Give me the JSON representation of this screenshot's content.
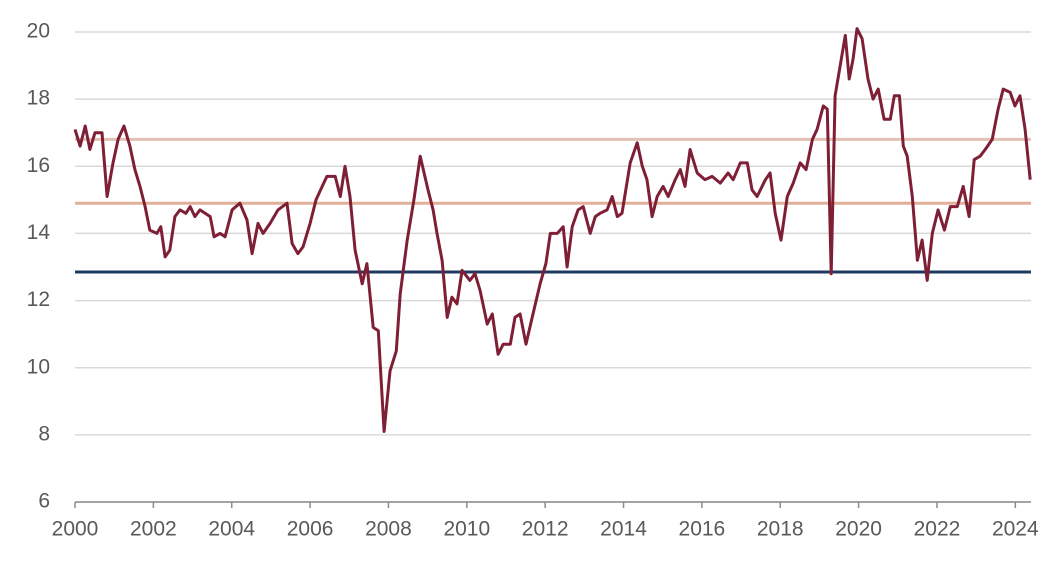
{
  "chart_data": {
    "type": "line",
    "x": [
      2000.0,
      2000.13,
      2000.26,
      2000.38,
      2000.51,
      2000.69,
      2000.82,
      2000.97,
      2001.1,
      2001.25,
      2001.4,
      2001.53,
      2001.66,
      2001.79,
      2001.91,
      2002.09,
      2002.19,
      2002.3,
      2002.42,
      2002.55,
      2002.68,
      2002.83,
      2002.94,
      2003.06,
      2003.19,
      2003.45,
      2003.55,
      2003.7,
      2003.83,
      2004.01,
      2004.21,
      2004.39,
      2004.52,
      2004.67,
      2004.8,
      2004.98,
      2005.18,
      2005.41,
      2005.54,
      2005.69,
      2005.82,
      2006.0,
      2006.15,
      2006.31,
      2006.43,
      2006.64,
      2006.77,
      2006.89,
      2007.02,
      2007.15,
      2007.33,
      2007.45,
      2007.61,
      2007.74,
      2007.89,
      2008.04,
      2008.2,
      2008.3,
      2008.48,
      2008.65,
      2008.81,
      2009.01,
      2009.14,
      2009.24,
      2009.37,
      2009.5,
      2009.62,
      2009.75,
      2009.88,
      2010.08,
      2010.21,
      2010.34,
      2010.52,
      2010.65,
      2010.8,
      2010.93,
      2011.11,
      2011.23,
      2011.36,
      2011.51,
      2011.67,
      2011.87,
      2012.02,
      2012.13,
      2012.31,
      2012.46,
      2012.56,
      2012.69,
      2012.84,
      2012.97,
      2013.15,
      2013.28,
      2013.4,
      2013.58,
      2013.71,
      2013.84,
      2013.96,
      2014.17,
      2014.35,
      2014.48,
      2014.6,
      2014.73,
      2014.86,
      2015.01,
      2015.14,
      2015.32,
      2015.45,
      2015.57,
      2015.7,
      2015.88,
      2016.08,
      2016.26,
      2016.47,
      2016.67,
      2016.8,
      2016.98,
      2017.16,
      2017.28,
      2017.41,
      2017.62,
      2017.74,
      2017.87,
      2018.02,
      2018.18,
      2018.33,
      2018.51,
      2018.66,
      2018.82,
      2018.94,
      2019.1,
      2019.2,
      2019.3,
      2019.4,
      2019.53,
      2019.66,
      2019.76,
      2019.86,
      2019.96,
      2020.09,
      2020.24,
      2020.37,
      2020.5,
      2020.65,
      2020.81,
      2020.91,
      2021.04,
      2021.14,
      2021.24,
      2021.37,
      2021.5,
      2021.62,
      2021.75,
      2021.88,
      2022.03,
      2022.19,
      2022.34,
      2022.52,
      2022.67,
      2022.82,
      2022.95,
      2023.1,
      2023.23,
      2023.41,
      2023.56,
      2023.69,
      2023.87,
      2023.99,
      2024.12,
      2024.25,
      2024.38
    ],
    "series": [
      {
        "color": "#7e1f35",
        "values": [
          17.1,
          16.6,
          17.2,
          16.5,
          17.0,
          17.0,
          15.1,
          16.1,
          16.8,
          17.2,
          16.6,
          15.9,
          15.4,
          14.8,
          14.1,
          14.0,
          14.2,
          13.3,
          13.5,
          14.5,
          14.7,
          14.6,
          14.8,
          14.5,
          14.7,
          14.5,
          13.9,
          14.0,
          13.9,
          14.7,
          14.9,
          14.4,
          13.4,
          14.3,
          14.0,
          14.3,
          14.7,
          14.9,
          13.7,
          13.4,
          13.6,
          14.3,
          15.0,
          15.4,
          15.7,
          15.7,
          15.1,
          16.0,
          15.1,
          13.5,
          12.5,
          13.1,
          11.2,
          11.1,
          8.1,
          9.9,
          10.5,
          12.2,
          13.8,
          15.0,
          16.3,
          15.3,
          14.7,
          14.0,
          13.2,
          11.5,
          12.1,
          11.9,
          12.9,
          12.6,
          12.8,
          12.3,
          11.3,
          11.6,
          10.4,
          10.7,
          10.7,
          11.5,
          11.6,
          10.7,
          11.5,
          12.5,
          13.1,
          14.0,
          14.0,
          14.2,
          13.0,
          14.2,
          14.7,
          14.8,
          14.0,
          14.5,
          14.6,
          14.7,
          15.1,
          14.5,
          14.6,
          16.1,
          16.7,
          16.0,
          15.6,
          14.5,
          15.1,
          15.4,
          15.1,
          15.6,
          15.9,
          15.4,
          16.5,
          15.8,
          15.6,
          15.7,
          15.5,
          15.8,
          15.6,
          16.1,
          16.1,
          15.3,
          15.1,
          15.6,
          15.8,
          14.6,
          13.8,
          15.1,
          15.5,
          16.1,
          15.9,
          16.8,
          17.1,
          17.8,
          17.7,
          12.8,
          18.1,
          19.0,
          19.9,
          18.6,
          19.2,
          20.1,
          19.8,
          18.6,
          18.0,
          18.3,
          17.4,
          17.4,
          18.1,
          18.1,
          16.6,
          16.3,
          15.1,
          13.2,
          13.8,
          12.6,
          14.0,
          14.7,
          14.1,
          14.8,
          14.8,
          15.4,
          14.5,
          16.2,
          16.3,
          16.5,
          16.8,
          17.7,
          18.3,
          18.2,
          17.8,
          18.1,
          17.1,
          15.6
        ]
      }
    ],
    "reference_lines": [
      {
        "value": 16.8,
        "color": "#e3c0b6"
      },
      {
        "value": 14.9,
        "color": "#e2b09a"
      },
      {
        "value": 12.85,
        "color": "#1f3a5f"
      }
    ],
    "xlim": [
      2000,
      2024.4
    ],
    "xticks": [
      2000,
      2002,
      2004,
      2006,
      2008,
      2010,
      2012,
      2014,
      2016,
      2018,
      2020,
      2022,
      2024
    ],
    "ylim": [
      6,
      20
    ],
    "yticks": [
      6,
      8,
      10,
      12,
      14,
      16,
      18,
      20
    ],
    "grid": true
  }
}
